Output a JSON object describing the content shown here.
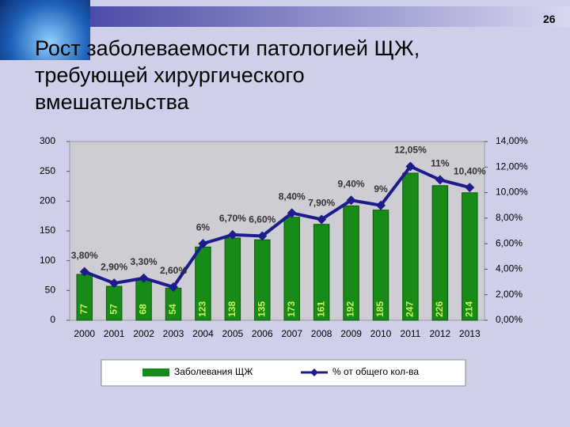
{
  "slide": {
    "page_number": "26",
    "title_lines": [
      "Рост заболеваемости патологией ЩЖ,",
      "требующей хирургического",
      "вмешательства"
    ]
  },
  "chart_data": {
    "type": "combo",
    "categories": [
      "2000",
      "2001",
      "2002",
      "2003",
      "2004",
      "2005",
      "2006",
      "2007",
      "2008",
      "2009",
      "2010",
      "2011",
      "2012",
      "2013"
    ],
    "series": [
      {
        "name": "Заболевания ЩЖ",
        "type": "bar",
        "color": "#178a17",
        "values": [
          77,
          57,
          68,
          54,
          123,
          138,
          135,
          173,
          161,
          192,
          185,
          247,
          226,
          214
        ]
      },
      {
        "name": "% от общего кол-ва",
        "type": "line",
        "axis": "y2",
        "color": "#1c1c8c",
        "values": [
          3.8,
          2.9,
          3.3,
          2.6,
          6,
          6.7,
          6.6,
          8.4,
          7.9,
          9.4,
          9,
          12.05,
          11,
          10.4
        ],
        "value_labels": [
          "3,80%",
          "2,90%",
          "3,30%",
          "2,60%",
          "6%",
          "6,70%",
          "6,60%",
          "8,40%",
          "7,90%",
          "9,40%",
          "9%",
          "12,05%",
          "11%",
          "10,40%"
        ]
      }
    ],
    "ylim": [
      0,
      300
    ],
    "yticks": [
      0,
      50,
      100,
      150,
      200,
      250,
      300
    ],
    "y2lim": [
      0,
      14
    ],
    "y2ticks": [
      {
        "value": 0,
        "label": "0,00%"
      },
      {
        "value": 2,
        "label": "2,00%"
      },
      {
        "value": 4,
        "label": "4,00%"
      },
      {
        "value": 6,
        "label": "6,00%"
      },
      {
        "value": 8,
        "label": "8,00%"
      },
      {
        "value": 10,
        "label": "10,00%"
      },
      {
        "value": 12,
        "label": "12,00%"
      },
      {
        "value": 14,
        "label": "14,00%"
      }
    ]
  }
}
